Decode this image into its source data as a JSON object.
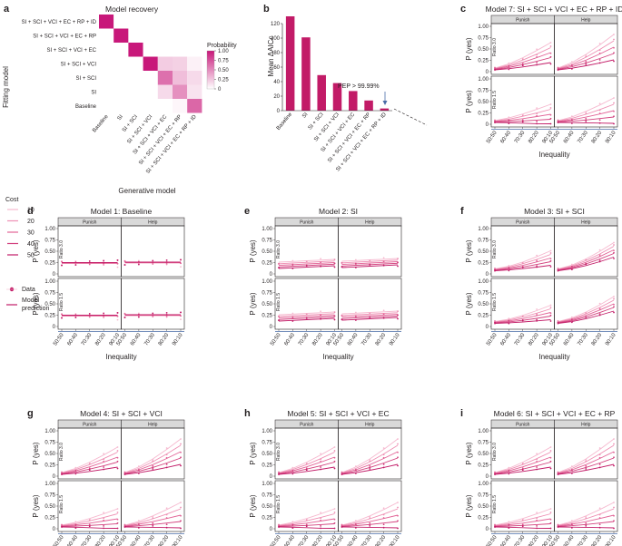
{
  "colors": {
    "c10": "#f6b9cf",
    "c20": "#ee8fb3",
    "c30": "#e26497",
    "c40": "#d2407d",
    "c50": "#c21b67",
    "matrix_max": "#c8187a",
    "axis": "#231f20",
    "strip": "#d9d9d9",
    "arrow": "#4a6da7"
  },
  "panel_a": {
    "label": "a",
    "title": "Model recovery",
    "ylabel": "Fitting model",
    "xlabel": "Generative model",
    "colorbar_title": "Probability",
    "colorbar_ticks": [
      "1.00",
      "0.75",
      "0.50",
      "0.25",
      "0"
    ],
    "row_labels": [
      "SI + SCI + VCI + EC + RP + ID",
      "SI + SCI + VCI + EC + RP",
      "SI + SCI + VCI + EC",
      "SI + SCI + VCI",
      "SI + SCI",
      "SI",
      "Baseline"
    ],
    "col_labels": [
      "Baseline",
      "SI",
      "SI + SCI",
      "SI + SCI + VCI",
      "SI + SCI + VCI + EC",
      "SI + SCI + VCI + EC + RP",
      "SI + SCI + VCI + EC + RP + ID"
    ],
    "matrix": [
      [
        1.0,
        0,
        0,
        0,
        0,
        0,
        0
      ],
      [
        0,
        1.0,
        0,
        0,
        0,
        0,
        0
      ],
      [
        0,
        0,
        1.0,
        0,
        0,
        0,
        0
      ],
      [
        0,
        0,
        0,
        1.0,
        0.22,
        0.2,
        0.06
      ],
      [
        0,
        0,
        0,
        0,
        0.62,
        0.28,
        0.16
      ],
      [
        0,
        0,
        0,
        0,
        0.16,
        0.48,
        0.12
      ],
      [
        0,
        0,
        0,
        0,
        0,
        0.04,
        0.66
      ]
    ]
  },
  "chart_data": {
    "type": "bar",
    "label": "b",
    "ylabel": "Mean ΔAICc",
    "categories": [
      "Baseline",
      "SI",
      "SI + SCI",
      "SI + SCI + VCI",
      "SI + SCI + VCI + EC",
      "SI + SCI + VCI + EC + RP",
      "SI + SCI + VCI + EC + RP + ID"
    ],
    "values": [
      130,
      101,
      49,
      38,
      27,
      14,
      3
    ],
    "ylim": [
      0,
      130
    ],
    "yticks": [
      0,
      20,
      40,
      60,
      80,
      100,
      120
    ],
    "annotation": "PEP > 99.99%"
  },
  "facets": {
    "ylabel": "P (yes)",
    "xlabel": "Inequality",
    "strip_left": "Punish",
    "strip_right": "Help",
    "row_top": "Ratio 3.0",
    "row_bottom": "Ratio 1.5",
    "yticks": [
      "1.00",
      "0.75",
      "0.50",
      "0.25",
      "0"
    ],
    "xticks": [
      "50:50",
      "60:40",
      "70:30",
      "80:20",
      "90:10"
    ]
  },
  "legend": {
    "cost_title": "Cost",
    "cost_levels": [
      "10",
      "20",
      "30",
      "40",
      "50"
    ],
    "data_label": "Data",
    "model_label_1": "Model",
    "model_label_2": "prediction"
  },
  "models": [
    {
      "label": "c",
      "title": "Model 7: SI + SCI + VCI + EC + RP + ID",
      "kind": "full"
    },
    {
      "label": "d",
      "title": "Model 1: Baseline",
      "kind": "flat"
    },
    {
      "label": "e",
      "title": "Model 2: SI",
      "kind": "weak"
    },
    {
      "label": "f",
      "title": "Model 3: SI + SCI",
      "kind": "mid"
    },
    {
      "label": "g",
      "title": "Model 4: SI + SCI + VCI",
      "kind": "full"
    },
    {
      "label": "h",
      "title": "Model 5: SI + SCI + VCI + EC",
      "kind": "full"
    },
    {
      "label": "i",
      "title": "Model 6: SI + SCI + VCI + EC + RP",
      "kind": "full"
    }
  ]
}
